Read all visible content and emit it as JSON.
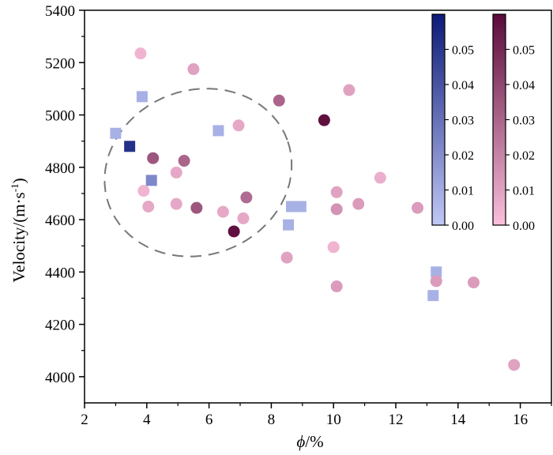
{
  "chart_data": {
    "type": "scatter",
    "xlabel_symbol": "ϕ",
    "xlabel_unit": "/%",
    "ylabel": "Velocity/(m·s",
    "ylabel_sup": "-1",
    "ylabel_end": ")",
    "xlim": [
      2,
      17
    ],
    "ylim": [
      3900,
      5400
    ],
    "xticks": [
      2,
      4,
      6,
      8,
      10,
      12,
      14,
      16
    ],
    "yticks": [
      4000,
      4200,
      4400,
      4600,
      4800,
      5000,
      5200,
      5400
    ],
    "grid": false,
    "series": [
      {
        "marker": "square",
        "colormap": [
          "#c0c8f6",
          "#0c1a78"
        ],
        "points": [
          {
            "x": 3.0,
            "y": 4930,
            "c": 0.008
          },
          {
            "x": 3.85,
            "y": 5070,
            "c": 0.008
          },
          {
            "x": 3.45,
            "y": 4880,
            "c": 0.052
          },
          {
            "x": 4.15,
            "y": 4750,
            "c": 0.022
          },
          {
            "x": 6.3,
            "y": 4940,
            "c": 0.008
          },
          {
            "x": 8.55,
            "y": 4580,
            "c": 0.008
          },
          {
            "x": 8.65,
            "y": 4650,
            "c": 0.008
          },
          {
            "x": 8.95,
            "y": 4650,
            "c": 0.008
          },
          {
            "x": 13.2,
            "y": 4310,
            "c": 0.008
          },
          {
            "x": 13.3,
            "y": 4400,
            "c": 0.008
          }
        ]
      },
      {
        "marker": "circle",
        "colormap": [
          "#fbc0dc",
          "#5a0a3a"
        ],
        "points": [
          {
            "x": 3.8,
            "y": 5235,
            "c": 0.004
          },
          {
            "x": 3.9,
            "y": 4710,
            "c": 0.004
          },
          {
            "x": 4.05,
            "y": 4650,
            "c": 0.008
          },
          {
            "x": 4.2,
            "y": 4835,
            "c": 0.035
          },
          {
            "x": 4.95,
            "y": 4780,
            "c": 0.008
          },
          {
            "x": 4.95,
            "y": 4660,
            "c": 0.008
          },
          {
            "x": 5.2,
            "y": 4825,
            "c": 0.03
          },
          {
            "x": 5.5,
            "y": 5175,
            "c": 0.01
          },
          {
            "x": 5.6,
            "y": 4645,
            "c": 0.035
          },
          {
            "x": 6.45,
            "y": 4630,
            "c": 0.008
          },
          {
            "x": 6.8,
            "y": 4555,
            "c": 0.058
          },
          {
            "x": 6.95,
            "y": 4960,
            "c": 0.008
          },
          {
            "x": 7.1,
            "y": 4605,
            "c": 0.008
          },
          {
            "x": 7.2,
            "y": 4685,
            "c": 0.028
          },
          {
            "x": 8.25,
            "y": 5055,
            "c": 0.03
          },
          {
            "x": 8.5,
            "y": 4455,
            "c": 0.01
          },
          {
            "x": 9.7,
            "y": 4980,
            "c": 0.058
          },
          {
            "x": 10.0,
            "y": 4495,
            "c": 0.004
          },
          {
            "x": 10.1,
            "y": 4705,
            "c": 0.01
          },
          {
            "x": 10.1,
            "y": 4640,
            "c": 0.015
          },
          {
            "x": 10.1,
            "y": 4345,
            "c": 0.012
          },
          {
            "x": 10.5,
            "y": 5095,
            "c": 0.01
          },
          {
            "x": 10.8,
            "y": 4660,
            "c": 0.012
          },
          {
            "x": 11.5,
            "y": 4760,
            "c": 0.006
          },
          {
            "x": 12.7,
            "y": 4645,
            "c": 0.012
          },
          {
            "x": 13.3,
            "y": 4365,
            "c": 0.012
          },
          {
            "x": 14.5,
            "y": 4360,
            "c": 0.012
          },
          {
            "x": 15.8,
            "y": 4045,
            "c": 0.01
          }
        ]
      }
    ],
    "ellipse": {
      "cx": 5.65,
      "cy": 4780,
      "rx_data": 3.05,
      "ry_data": 315,
      "angle_deg": 20,
      "style": "dashed"
    },
    "colorbars": [
      {
        "colors": [
          "#c0c8f6",
          "#0c1a78"
        ],
        "min": 0,
        "max": 0.06,
        "ticks": [
          "0.00",
          "0.01",
          "0.02",
          "0.03",
          "0.04",
          "0.05"
        ]
      },
      {
        "colors": [
          "#fbc0dc",
          "#5a0a3a"
        ],
        "min": 0,
        "max": 0.06,
        "ticks": [
          "0.00",
          "0.01",
          "0.02",
          "0.03",
          "0.04",
          "0.05"
        ]
      }
    ]
  }
}
